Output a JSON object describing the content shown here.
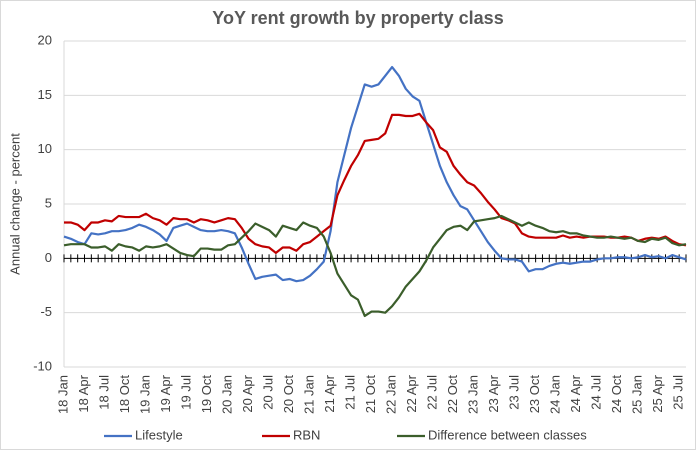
{
  "chart_data": {
    "type": "line",
    "title": "YoY rent growth by property class",
    "y_label": "Annual change - percent",
    "categories": [
      "18 Jan",
      null,
      null,
      "18 Apr",
      null,
      null,
      "18 Jul",
      null,
      null,
      "18 Oct",
      null,
      null,
      "19 Jan",
      null,
      null,
      "19 Apr",
      null,
      null,
      "19 Jul",
      null,
      null,
      "19 Oct",
      null,
      null,
      "20 Jan",
      null,
      null,
      "20 Apr",
      null,
      null,
      "20 Jul",
      null,
      null,
      "20 Oct",
      null,
      null,
      "21 Jan",
      null,
      null,
      "21 Apr",
      null,
      null,
      "21 Jul",
      null,
      null,
      "21 Oct",
      null,
      null,
      "22 Jan",
      null,
      null,
      "22 Apr",
      null,
      null,
      "22 Jul",
      null,
      null,
      "22 Oct",
      null,
      null,
      "23 Jan",
      null,
      null,
      "23 Apr",
      null,
      null,
      "23 Jul",
      null,
      null,
      "23 Oct",
      null,
      null,
      "24 Jan",
      null,
      null,
      "24 Apr",
      null,
      null,
      "24 Jul",
      null,
      null,
      "24 Oct",
      null,
      null,
      "25 Jan",
      null,
      null,
      "25 Apr",
      null,
      null,
      "25 Jul",
      null
    ],
    "series": [
      {
        "name": "Lifestyle",
        "color": "#4472c4",
        "values": [
          2.0,
          1.8,
          1.5,
          1.3,
          2.3,
          2.2,
          2.3,
          2.5,
          2.5,
          2.6,
          2.8,
          3.1,
          2.9,
          2.6,
          2.2,
          1.6,
          2.8,
          3.0,
          3.2,
          2.9,
          2.6,
          2.5,
          2.5,
          2.6,
          2.5,
          2.3,
          1.0,
          -0.5,
          -1.9,
          -1.7,
          -1.6,
          -1.5,
          -2.0,
          -1.9,
          -2.1,
          -2.0,
          -1.6,
          -1.0,
          -0.3,
          2.5,
          7.0,
          9.5,
          12.0,
          14.0,
          16.0,
          15.8,
          16.0,
          16.8,
          17.6,
          16.8,
          15.6,
          14.9,
          14.5,
          12.5,
          10.5,
          8.5,
          7.0,
          5.8,
          4.8,
          4.5,
          3.5,
          2.5,
          1.5,
          0.7,
          0.0,
          -0.1,
          -0.1,
          -0.3,
          -1.2,
          -1.0,
          -1.0,
          -0.7,
          -0.5,
          -0.4,
          -0.5,
          -0.4,
          -0.3,
          -0.3,
          -0.1,
          0.0,
          0.0,
          0.1,
          0.1,
          0.0,
          0.1,
          0.3,
          0.1,
          0.2,
          0.0,
          0.3,
          0.1,
          -0.1
        ]
      },
      {
        "name": "RBN",
        "color": "#c00000",
        "values": [
          3.3,
          3.3,
          3.1,
          2.6,
          3.3,
          3.3,
          3.5,
          3.4,
          3.9,
          3.8,
          3.8,
          3.8,
          4.1,
          3.7,
          3.5,
          3.1,
          3.7,
          3.6,
          3.6,
          3.3,
          3.6,
          3.5,
          3.3,
          3.5,
          3.7,
          3.6,
          2.8,
          1.8,
          1.3,
          1.1,
          1.0,
          0.5,
          1.0,
          1.0,
          0.7,
          1.3,
          1.5,
          2.0,
          2.5,
          3.0,
          5.8,
          7.2,
          8.5,
          9.5,
          10.8,
          10.9,
          11.0,
          11.5,
          13.2,
          13.2,
          13.1,
          13.1,
          13.3,
          12.5,
          11.8,
          10.2,
          9.8,
          8.5,
          7.7,
          7.0,
          6.7,
          6.0,
          5.2,
          4.5,
          3.7,
          3.5,
          3.2,
          2.3,
          2.0,
          1.9,
          1.9,
          1.9,
          1.9,
          2.1,
          1.9,
          2.0,
          1.9,
          2.0,
          2.0,
          2.0,
          1.9,
          1.9,
          2.0,
          1.9,
          1.6,
          1.8,
          1.9,
          1.8,
          2.0,
          1.6,
          1.3,
          1.2
        ]
      },
      {
        "name": "Difference between classes",
        "color": "#3b5e2b",
        "values": [
          1.2,
          1.3,
          1.3,
          1.3,
          1.0,
          1.0,
          1.1,
          0.7,
          1.3,
          1.1,
          1.0,
          0.7,
          1.1,
          1.0,
          1.1,
          1.3,
          0.9,
          0.5,
          0.3,
          0.2,
          0.9,
          0.9,
          0.8,
          0.8,
          1.2,
          1.3,
          1.9,
          2.5,
          3.2,
          2.9,
          2.6,
          2.0,
          3.0,
          2.8,
          2.6,
          3.3,
          3.0,
          2.8,
          2.0,
          0.5,
          -1.4,
          -2.4,
          -3.4,
          -3.8,
          -5.3,
          -4.9,
          -4.9,
          -5.0,
          -4.4,
          -3.6,
          -2.6,
          -1.9,
          -1.2,
          -0.2,
          1.0,
          1.8,
          2.6,
          2.9,
          3.0,
          2.6,
          3.4,
          3.5,
          3.6,
          3.7,
          3.9,
          3.6,
          3.3,
          3.0,
          3.3,
          3.0,
          2.8,
          2.5,
          2.4,
          2.5,
          2.3,
          2.3,
          2.1,
          2.0,
          1.9,
          1.9,
          2.0,
          1.9,
          1.8,
          1.9,
          1.6,
          1.5,
          1.8,
          1.7,
          1.9,
          1.4,
          1.2,
          1.3
        ]
      }
    ],
    "ylim": [
      -10,
      20
    ],
    "yticks": [
      -10,
      -5,
      0,
      5,
      10,
      15,
      20
    ],
    "grid": true,
    "legend": "bottom"
  }
}
